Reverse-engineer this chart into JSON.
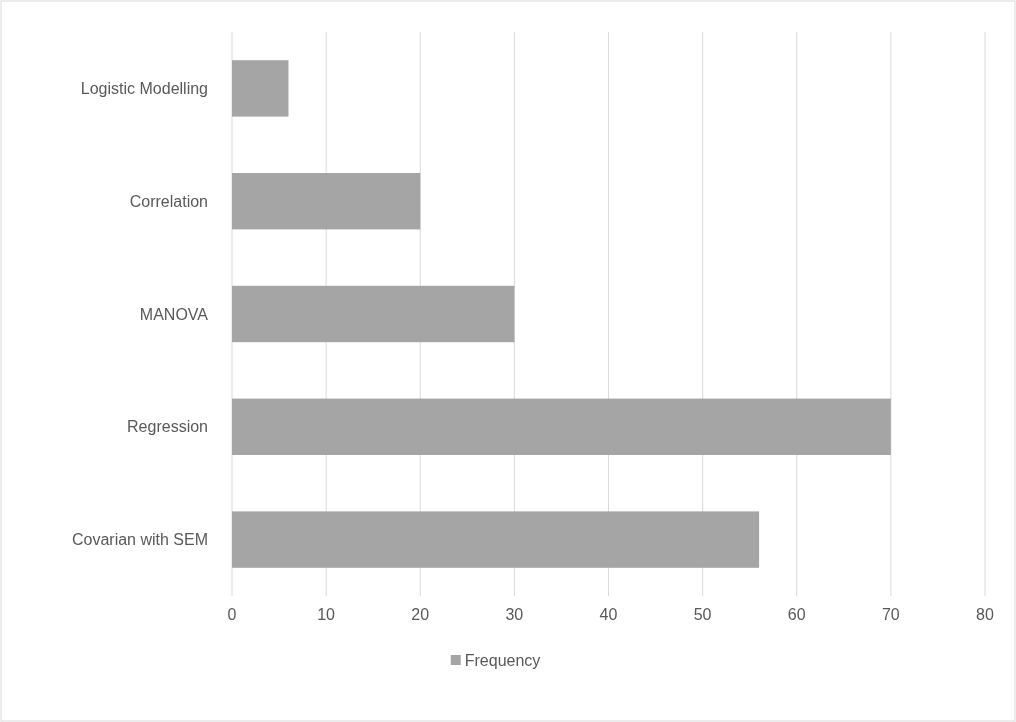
{
  "chart_data": {
    "type": "bar",
    "orientation": "horizontal",
    "categories": [
      "Logistic Modelling",
      "Correlation",
      "MANOVA",
      "Regression",
      "Covarian with SEM"
    ],
    "series": [
      {
        "name": "Frequency",
        "color": "#a5a5a5",
        "values": [
          6,
          20,
          30,
          70,
          56
        ]
      }
    ],
    "xlim": [
      0,
      80
    ],
    "xticks": [
      0,
      10,
      20,
      30,
      40,
      50,
      60,
      70,
      80
    ],
    "grid": "x",
    "legend": "bottom"
  }
}
